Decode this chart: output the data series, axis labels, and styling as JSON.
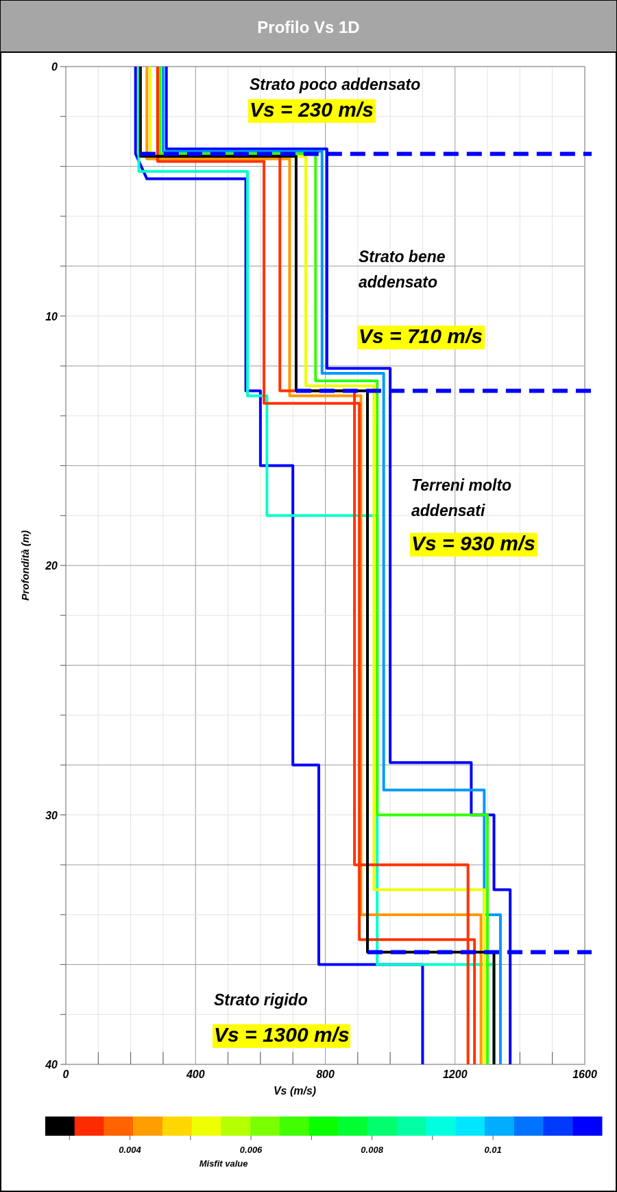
{
  "chart_data": {
    "type": "line",
    "title": "Profilo Vs 1D",
    "xlabel": "Vs (m/s)",
    "ylabel": "Profondità (m)",
    "clabel": "Misfit value",
    "xlim": [
      0,
      1600
    ],
    "xticks": [
      0,
      {
        "value": 100,
        "label": null
      },
      {
        "value": 200,
        "label": null
      },
      {
        "value": 300,
        "label": null
      },
      400,
      {
        "value": 500,
        "label": null
      },
      {
        "value": 600,
        "label": null
      },
      {
        "value": 700,
        "label": null
      },
      800,
      {
        "value": 900,
        "label": null
      },
      {
        "value": 1000,
        "label": null
      },
      {
        "value": 1100,
        "label": null
      },
      1200,
      {
        "value": 1300,
        "label": null
      },
      {
        "value": 1400,
        "label": null
      },
      {
        "value": 1500,
        "label": null
      },
      1600
    ],
    "ylim": [
      40,
      0
    ],
    "yticks": [
      0,
      {
        "value": 2,
        "label": null
      },
      {
        "value": 4,
        "label": null
      },
      {
        "value": 6,
        "label": null
      },
      {
        "value": 8,
        "label": null
      },
      10,
      {
        "value": 12,
        "label": null
      },
      {
        "value": 14,
        "label": null
      },
      {
        "value": 16,
        "label": null
      },
      {
        "value": 18,
        "label": null
      },
      20,
      {
        "value": 22,
        "label": null
      },
      {
        "value": 24,
        "label": null
      },
      {
        "value": 26,
        "label": null
      },
      {
        "value": 28,
        "label": null
      },
      30,
      {
        "value": 32,
        "label": null
      },
      {
        "value": 34,
        "label": null
      },
      {
        "value": 36,
        "label": null
      },
      {
        "value": 38,
        "label": null
      },
      40
    ],
    "grid": true,
    "clim": [
      0.0026,
      0.0118
    ],
    "cticks": [
      {
        "value": 0.003,
        "label": null
      },
      0.004,
      {
        "value": 0.005,
        "label": null
      },
      0.006,
      {
        "value": 0.007,
        "label": null
      },
      0.008,
      {
        "value": 0.009,
        "label": null
      },
      0.01
    ],
    "series": [
      {
        "color": "#0000ff",
        "x": [
          215,
          215,
          250,
          555,
          555,
          600,
          600,
          700,
          700,
          780,
          780,
          1100,
          1100
        ],
        "values": [
          0,
          3.5,
          4.5,
          4.5,
          13,
          13,
          16,
          16,
          28,
          28,
          36,
          36,
          40
        ]
      },
      {
        "color": "#0000ff",
        "x": [
          310,
          310,
          805,
          805,
          1000,
          1000,
          1250,
          1250,
          1320,
          1320,
          1370,
          1370
        ],
        "values": [
          0,
          3.3,
          3.3,
          12.1,
          12.1,
          27.9,
          27.9,
          30,
          30,
          33,
          33,
          40
        ]
      },
      {
        "color": "#0099ff",
        "x": [
          300,
          300,
          790,
          790,
          980,
          980,
          1290,
          1290,
          1340,
          1340
        ],
        "values": [
          0,
          3.4,
          3.4,
          12.3,
          12.3,
          29,
          29,
          34,
          34,
          40
        ]
      },
      {
        "color": "#00ffcc",
        "x": [
          225,
          225,
          560,
          560,
          620,
          620,
          960,
          960,
          1320,
          1320
        ],
        "values": [
          0,
          4.2,
          4.2,
          13.2,
          13.2,
          18,
          18,
          36,
          36,
          40
        ]
      },
      {
        "color": "#33ff00",
        "x": [
          290,
          290,
          770,
          770,
          960,
          960,
          1300,
          1300
        ],
        "values": [
          0,
          3.5,
          3.5,
          12.6,
          12.6,
          30,
          30,
          40
        ]
      },
      {
        "color": "#eeff00",
        "x": [
          260,
          260,
          740,
          740,
          950,
          950,
          1290,
          1290
        ],
        "values": [
          0,
          3.6,
          3.6,
          12.8,
          12.8,
          33,
          33,
          40
        ]
      },
      {
        "color": "#ff9900",
        "x": [
          250,
          250,
          690,
          690,
          910,
          910,
          1280,
          1280
        ],
        "values": [
          0,
          3.7,
          3.7,
          13.2,
          13.2,
          34,
          34,
          40
        ]
      },
      {
        "color": "#ff3300",
        "x": [
          283,
          283,
          660,
          660,
          890,
          890,
          1240,
          1240
        ],
        "values": [
          0,
          3.6,
          3.6,
          13,
          13,
          32,
          32,
          40
        ]
      },
      {
        "color": "#ff3300",
        "x": [
          283,
          283,
          611,
          611,
          905,
          905,
          1260,
          1260
        ],
        "values": [
          0,
          3.8,
          3.8,
          13.5,
          13.5,
          35,
          35,
          40
        ]
      },
      {
        "color": "#000000",
        "x": [
          230,
          230,
          710,
          710,
          930,
          930,
          1320,
          1320
        ],
        "values": [
          0,
          3.6,
          3.6,
          13,
          13,
          35.5,
          35.5,
          40
        ]
      }
    ],
    "ref_lines": [
      {
        "axis": "y",
        "value": 3.5,
        "color": "#0000ff",
        "line_style": "dashed"
      },
      {
        "axis": "y",
        "value": 13,
        "color": "#0000ff",
        "line_style": "dashed"
      },
      {
        "axis": "y",
        "value": 35.5,
        "color": "#0000ff",
        "line_style": "dashed"
      }
    ],
    "annotations": [
      "Strato poco addensato",
      "Vs = 230 m/s",
      "Strato bene addensato",
      "Vs = 710 m/s",
      "Terreni molto addensati",
      "Vs = 930 m/s",
      "Strato rigido",
      "Vs = 1300 m/s"
    ]
  }
}
